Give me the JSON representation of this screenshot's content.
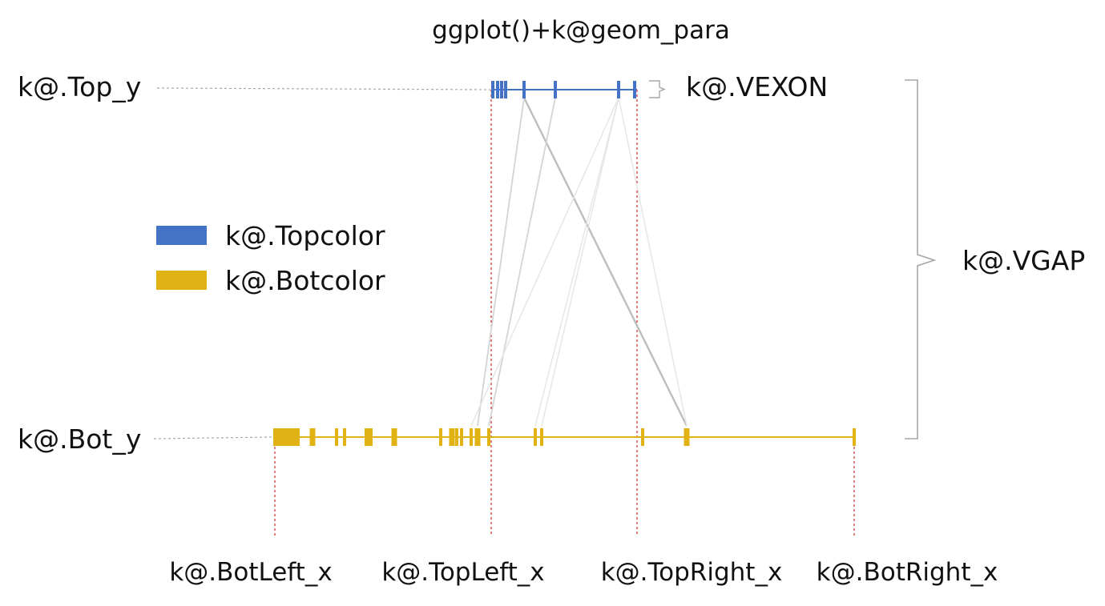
{
  "title": "ggplot()+k@geom_para",
  "labels": {
    "top_y": "k@.Top_y",
    "bot_y": "k@.Bot_y",
    "vexon": "k@.VEXON",
    "vgap": "k@.VGAP",
    "bot_left_x": "k@.BotLeft_x",
    "top_left_x": "k@.TopLeft_x",
    "top_right_x": "k@.TopRight_x",
    "bot_right_x": "k@.BotRight_x"
  },
  "legend": [
    {
      "label": "k@.Topcolor",
      "color": "#4472c4"
    },
    {
      "label": "k@.Botcolor",
      "color": "#e1b214"
    }
  ],
  "colors": {
    "top_track": "#4472c4",
    "bot_track": "#e1b214",
    "guide_red": "#c00000",
    "guide_gray": "#a6a6a6",
    "link": "#c8c8c8"
  },
  "chart_data": {
    "type": "parallel-tracks",
    "top_track": {
      "start": 613,
      "end": 795,
      "marks": [
        615,
        621,
        626,
        631,
        654,
        693,
        772,
        792
      ]
    },
    "bot_track": {
      "start": 343,
      "end": 1066,
      "marks": [
        343,
        358,
        366,
        390,
        420,
        430,
        460,
        492,
        550,
        564,
        570,
        576,
        588,
        596,
        610,
        668,
        676,
        802,
        857,
        1066
      ]
    },
    "links": [
      {
        "top": 654,
        "bot": 857,
        "strength": "strong"
      },
      {
        "top": 654,
        "bot": 596,
        "strength": "medium"
      },
      {
        "top": 693,
        "bot": 610,
        "strength": "medium"
      },
      {
        "top": 772,
        "bot": 668,
        "strength": "weak"
      },
      {
        "top": 772,
        "bot": 676,
        "strength": "weak"
      },
      {
        "top": 772,
        "bot": 588,
        "strength": "weak"
      },
      {
        "top": 772,
        "bot": 857,
        "strength": "weak"
      }
    ]
  }
}
